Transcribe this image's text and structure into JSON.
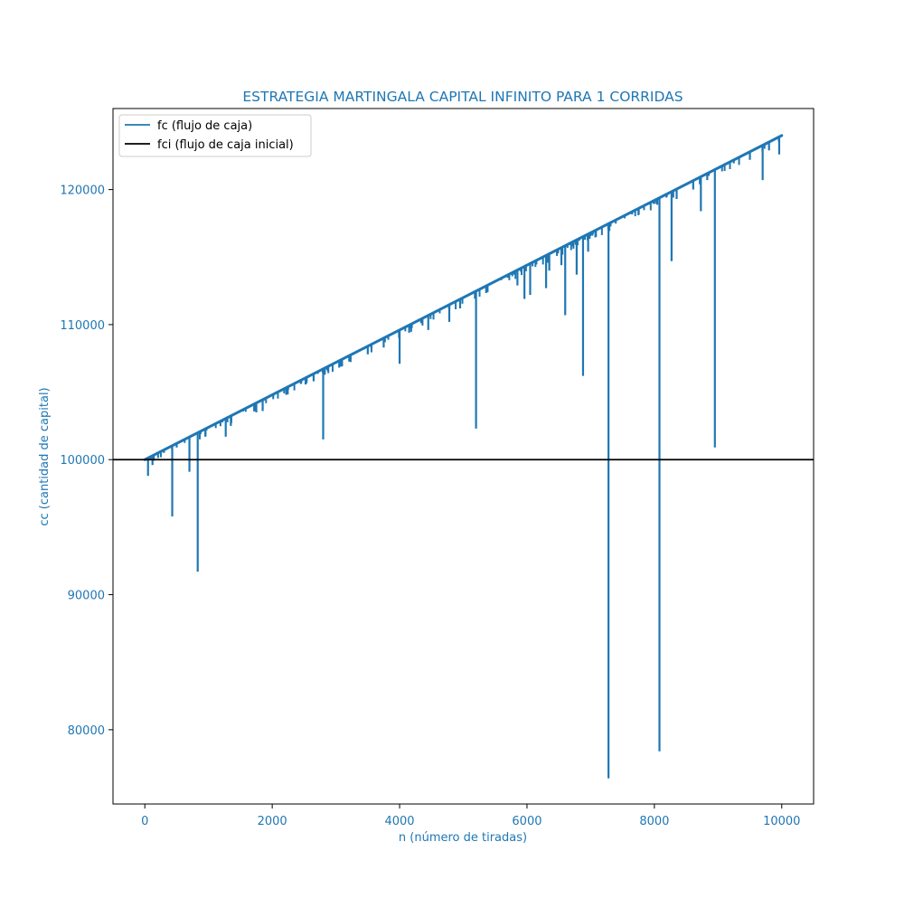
{
  "chart_data": {
    "type": "line",
    "title": "ESTRATEGIA MARTINGALA CAPITAL INFINITO PARA 1 CORRIDAS",
    "xlabel": "n (número de tiradas)",
    "ylabel": "cc (cantidad de capital)",
    "xlim": [
      -500,
      10500
    ],
    "ylim": [
      74500,
      126000
    ],
    "x_ticks": [
      0,
      2000,
      4000,
      6000,
      8000,
      10000
    ],
    "y_ticks": [
      80000,
      90000,
      100000,
      110000,
      120000
    ],
    "grid": false,
    "legend_position": "top-left",
    "label_color": "#1f77b4",
    "series": [
      {
        "name": "fc (flujo de caja)",
        "color": "#1f77b4",
        "trend": {
          "x": [
            0,
            10000
          ],
          "y": [
            100000,
            124000
          ]
        },
        "dips": [
          {
            "x": 50,
            "y": 98800
          },
          {
            "x": 120,
            "y": 99600
          },
          {
            "x": 300,
            "y": 100500
          },
          {
            "x": 430,
            "y": 95800
          },
          {
            "x": 500,
            "y": 100900
          },
          {
            "x": 700,
            "y": 99100
          },
          {
            "x": 830,
            "y": 91700
          },
          {
            "x": 950,
            "y": 101700
          },
          {
            "x": 1270,
            "y": 101700
          },
          {
            "x": 1350,
            "y": 102500
          },
          {
            "x": 1750,
            "y": 103500
          },
          {
            "x": 1850,
            "y": 103600
          },
          {
            "x": 2220,
            "y": 104800
          },
          {
            "x": 2650,
            "y": 105800
          },
          {
            "x": 2800,
            "y": 101500
          },
          {
            "x": 3500,
            "y": 107800
          },
          {
            "x": 3750,
            "y": 108300
          },
          {
            "x": 4000,
            "y": 107100
          },
          {
            "x": 4150,
            "y": 109400
          },
          {
            "x": 4450,
            "y": 109600
          },
          {
            "x": 4780,
            "y": 110200
          },
          {
            "x": 4950,
            "y": 111200
          },
          {
            "x": 5200,
            "y": 102300
          },
          {
            "x": 5850,
            "y": 112900
          },
          {
            "x": 5960,
            "y": 111900
          },
          {
            "x": 6050,
            "y": 112200
          },
          {
            "x": 6300,
            "y": 112700
          },
          {
            "x": 6350,
            "y": 114000
          },
          {
            "x": 6540,
            "y": 114400
          },
          {
            "x": 6600,
            "y": 110700
          },
          {
            "x": 6780,
            "y": 113700
          },
          {
            "x": 6880,
            "y": 106200
          },
          {
            "x": 6960,
            "y": 115400
          },
          {
            "x": 7280,
            "y": 76400
          },
          {
            "x": 7750,
            "y": 118100
          },
          {
            "x": 8080,
            "y": 78400
          },
          {
            "x": 8270,
            "y": 114700
          },
          {
            "x": 8350,
            "y": 119300
          },
          {
            "x": 8610,
            "y": 120000
          },
          {
            "x": 8730,
            "y": 118400
          },
          {
            "x": 8830,
            "y": 120700
          },
          {
            "x": 8950,
            "y": 100900
          },
          {
            "x": 9500,
            "y": 122200
          },
          {
            "x": 9700,
            "y": 120700
          },
          {
            "x": 9800,
            "y": 122900
          },
          {
            "x": 9960,
            "y": 122600
          }
        ]
      },
      {
        "name": "fci (flujo de caja inicial)",
        "color": "#000000",
        "y": 100000
      }
    ]
  }
}
